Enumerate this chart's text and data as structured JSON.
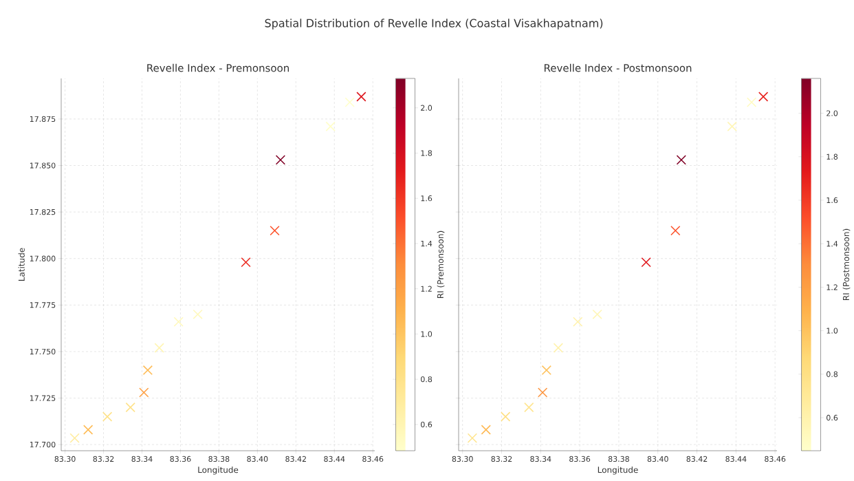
{
  "chart_data": [
    {
      "type": "other",
      "title": "Spatial Distribution of Revelle Index (Coastal Visakhapatnam)"
    },
    {
      "type": "scatter",
      "title": "Revelle Index - Premonsoon",
      "xlabel": "Longitude",
      "ylabel": "Latitude",
      "clabel": "RI (Premonsoon)",
      "marker": "cross",
      "grid": true,
      "x": [
        83.305,
        83.312,
        83.322,
        83.334,
        83.341,
        83.343,
        83.349,
        83.359,
        83.369,
        83.394,
        83.409,
        83.412,
        83.438,
        83.448,
        83.454
      ],
      "values": [
        17.7035,
        17.708,
        17.715,
        17.72,
        17.728,
        17.74,
        17.752,
        17.766,
        17.77,
        17.798,
        17.815,
        17.853,
        17.871,
        17.884,
        17.887
      ],
      "cvalues": [
        0.7,
        1.05,
        0.8,
        0.8,
        1.2,
        1.05,
        0.6,
        0.55,
        0.55,
        1.65,
        1.5,
        2.13,
        0.5,
        0.48,
        1.75
      ],
      "xlim": [
        83.298,
        83.461
      ],
      "ylim": [
        17.6967,
        17.8968
      ],
      "xticks": [
        {
          "value": 83.3,
          "label": "83.30"
        },
        {
          "value": 83.32,
          "label": "83.32"
        },
        {
          "value": 83.34,
          "label": "83.34"
        },
        {
          "value": 83.36,
          "label": "83.36"
        },
        {
          "value": 83.38,
          "label": "83.38"
        },
        {
          "value": 83.4,
          "label": "83.40"
        },
        {
          "value": 83.42,
          "label": "83.42"
        },
        {
          "value": 83.44,
          "label": "83.44"
        },
        {
          "value": 83.46,
          "label": "83.46"
        }
      ],
      "yticks": [
        {
          "value": 17.7,
          "label": "17.700"
        },
        {
          "value": 17.725,
          "label": "17.725"
        },
        {
          "value": 17.75,
          "label": "17.750"
        },
        {
          "value": 17.775,
          "label": "17.775"
        },
        {
          "value": 17.8,
          "label": "17.800"
        },
        {
          "value": 17.825,
          "label": "17.825"
        },
        {
          "value": 17.85,
          "label": "17.850"
        },
        {
          "value": 17.875,
          "label": "17.875"
        }
      ],
      "clim": [
        0.484,
        2.13
      ],
      "cticks": [
        {
          "value": 0.6,
          "label": "0.6"
        },
        {
          "value": 0.8,
          "label": "0.8"
        },
        {
          "value": 1.0,
          "label": "1.0"
        },
        {
          "value": 1.2,
          "label": "1.2"
        },
        {
          "value": 1.4,
          "label": "1.4"
        },
        {
          "value": 1.6,
          "label": "1.6"
        },
        {
          "value": 1.8,
          "label": "1.8"
        },
        {
          "value": 2.0,
          "label": "2.0"
        }
      ]
    },
    {
      "type": "scatter",
      "title": "Revelle Index - Postmonsoon",
      "xlabel": "Longitude",
      "clabel": "RI (Postmonsoon)",
      "marker": "cross",
      "grid": true,
      "tick_labels": "x",
      "x": [
        83.305,
        83.312,
        83.322,
        83.334,
        83.341,
        83.343,
        83.349,
        83.359,
        83.369,
        83.394,
        83.409,
        83.412,
        83.438,
        83.448,
        83.454
      ],
      "values": [
        17.7035,
        17.708,
        17.715,
        17.72,
        17.728,
        17.74,
        17.752,
        17.766,
        17.77,
        17.798,
        17.815,
        17.853,
        17.871,
        17.884,
        17.887
      ],
      "cvalues": [
        0.75,
        1.05,
        0.8,
        0.75,
        1.25,
        1.0,
        0.6,
        0.6,
        0.55,
        1.75,
        1.5,
        2.16,
        0.55,
        0.5,
        1.7
      ],
      "xlim": [
        83.298,
        83.461
      ],
      "ylim": [
        17.6967,
        17.8968
      ],
      "xticks": [
        {
          "value": 83.3,
          "label": "83.30"
        },
        {
          "value": 83.32,
          "label": "83.32"
        },
        {
          "value": 83.34,
          "label": "83.34"
        },
        {
          "value": 83.36,
          "label": "83.36"
        },
        {
          "value": 83.38,
          "label": "83.38"
        },
        {
          "value": 83.4,
          "label": "83.40"
        },
        {
          "value": 83.42,
          "label": "83.42"
        },
        {
          "value": 83.44,
          "label": "83.44"
        },
        {
          "value": 83.46,
          "label": "83.46"
        }
      ],
      "yticks": [
        {
          "value": 17.7,
          "label": null
        },
        {
          "value": 17.725,
          "label": null
        },
        {
          "value": 17.75,
          "label": null
        },
        {
          "value": 17.775,
          "label": null
        },
        {
          "value": 17.8,
          "label": null
        },
        {
          "value": 17.825,
          "label": null
        },
        {
          "value": 17.85,
          "label": null
        },
        {
          "value": 17.875,
          "label": null
        }
      ],
      "clim": [
        0.448,
        2.16
      ],
      "cticks": [
        {
          "value": 0.6,
          "label": "0.6"
        },
        {
          "value": 0.8,
          "label": "0.8"
        },
        {
          "value": 1.0,
          "label": "1.0"
        },
        {
          "value": 1.2,
          "label": "1.2"
        },
        {
          "value": 1.4,
          "label": "1.4"
        },
        {
          "value": 1.6,
          "label": "1.6"
        },
        {
          "value": 1.8,
          "label": "1.8"
        },
        {
          "value": 2.0,
          "label": "2.0"
        }
      ]
    }
  ]
}
